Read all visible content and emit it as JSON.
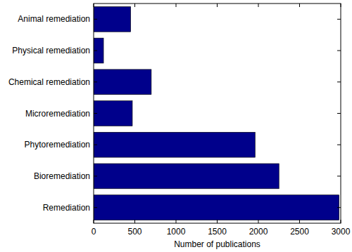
{
  "chart_data": {
    "type": "bar",
    "orientation": "horizontal",
    "x_label": "Number of publications",
    "categories": [
      "Animal remediation",
      "Physical remediation",
      "Chemical remediation",
      "Microremediation",
      "Phytoremediation",
      "Bioremediation",
      "Remediation"
    ],
    "values": [
      450,
      120,
      700,
      470,
      1960,
      2250,
      2980
    ],
    "color": "#00008b",
    "xlim": [
      0,
      3000
    ],
    "xticks": [
      0,
      500,
      1000,
      1500,
      2000,
      2500,
      3000
    ],
    "grid": false
  }
}
